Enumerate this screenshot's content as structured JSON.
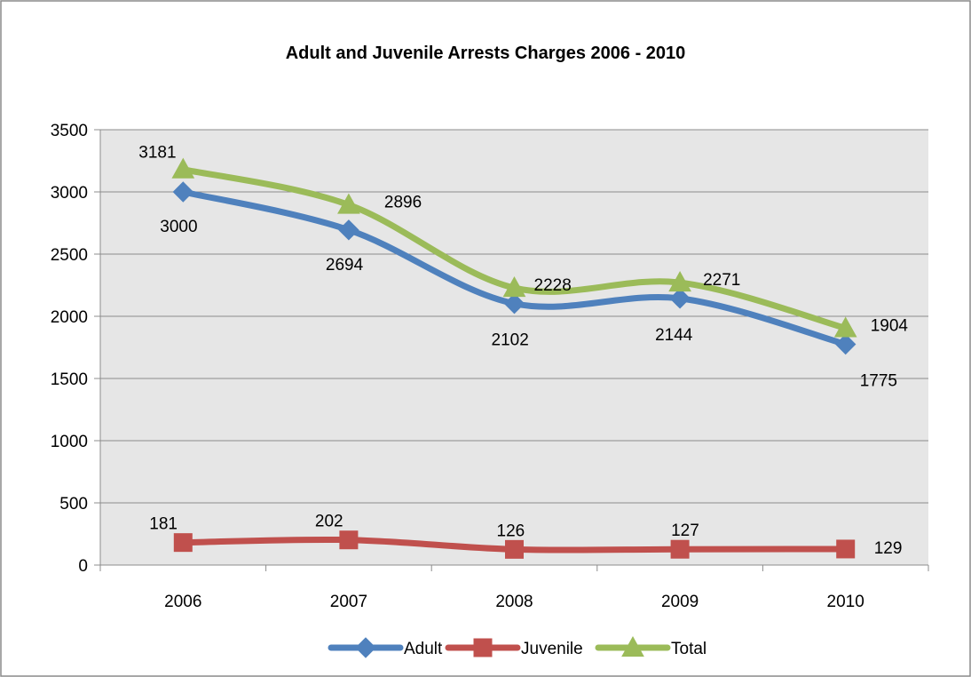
{
  "chart_data": {
    "type": "line",
    "title": "Adult and Juvenile Arrests Charges 2006 - 2010",
    "xlabel": "",
    "ylabel": "",
    "categories": [
      "2006",
      "2007",
      "2008",
      "2009",
      "2010"
    ],
    "ylim": [
      0,
      3500
    ],
    "yticks": [
      0,
      500,
      1000,
      1500,
      2000,
      2500,
      3000,
      3500
    ],
    "grid": true,
    "legend": "bottom",
    "series": [
      {
        "name": "Adult",
        "values": [
          3000,
          2694,
          2102,
          2144,
          1775
        ],
        "color": "#4F81BD",
        "marker": "diamond"
      },
      {
        "name": "Juvenile",
        "values": [
          181,
          202,
          126,
          127,
          129
        ],
        "color": "#C0504D",
        "marker": "square"
      },
      {
        "name": "Total",
        "values": [
          3181,
          2896,
          2228,
          2271,
          1904
        ],
        "color": "#9BBB59",
        "marker": "triangle"
      }
    ]
  }
}
